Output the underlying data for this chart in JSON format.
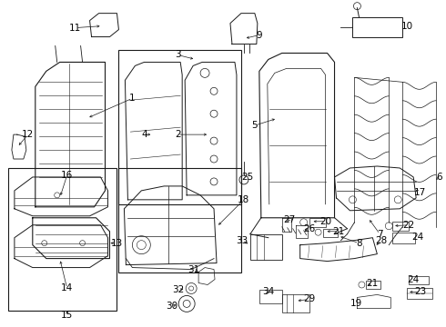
{
  "background_color": "#ffffff",
  "line_color": "#1a1a1a",
  "label_color": "#000000",
  "fs": 7.5,
  "fig_width": 4.9,
  "fig_height": 3.6,
  "dpi": 100
}
